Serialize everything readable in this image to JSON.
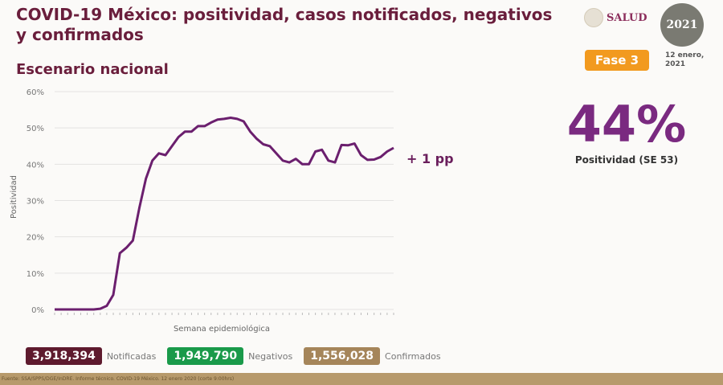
{
  "header": {
    "title": "COVID-19 México: positividad, casos notificados, negativos y confirmados",
    "subtitle": "Escenario nacional",
    "logo_text": "SALUD",
    "badge_year": "2021",
    "phase": "Fase 3",
    "date_line1": "12 enero,",
    "date_line2": "2021"
  },
  "highlight": {
    "value": "44%",
    "label": "Positividad (SE 53)",
    "change": "+ 1 pp"
  },
  "stats": [
    {
      "value": "3,918,394",
      "label": "Notificadas",
      "color": "#5e1a2e"
    },
    {
      "value": "1,949,790",
      "label": "Negativos",
      "color": "#1a9a4a"
    },
    {
      "value": "1,556,028",
      "label": "Confirmados",
      "color": "#a5855a"
    }
  ],
  "footer": "Fuente: SSA/SPPS/DGE/InDRE. Informe técnico. COVID-19 México. 12 enero 2020 (corte 9:00hrs)",
  "colors": {
    "line": "#6b1f6e",
    "title": "#6a1e3c",
    "highlight": "#7a2a80"
  },
  "chart_data": {
    "type": "line",
    "xlabel": "Semana epidemiológica",
    "ylabel": "Positividad",
    "ylim": [
      0,
      60
    ],
    "yticks": [
      "0%",
      "10%",
      "20%",
      "30%",
      "40%",
      "50%",
      "60%"
    ],
    "grid": true,
    "x": [
      1,
      2,
      3,
      4,
      5,
      6,
      7,
      8,
      9,
      10,
      11,
      12,
      13,
      14,
      15,
      16,
      17,
      18,
      19,
      20,
      21,
      22,
      23,
      24,
      25,
      26,
      27,
      28,
      29,
      30,
      31,
      32,
      33,
      34,
      35,
      36,
      37,
      38,
      39,
      40,
      41,
      42,
      43,
      44,
      45,
      46,
      47,
      48,
      49,
      50,
      51,
      52,
      53
    ],
    "values": [
      0,
      0,
      0,
      0,
      0,
      0,
      0,
      0.2,
      1,
      4,
      15.5,
      17,
      19,
      28,
      36,
      41,
      43,
      42.5,
      45,
      47.5,
      49,
      49,
      50.5,
      50.5,
      51.5,
      52.3,
      52.5,
      52.8,
      52.5,
      51.8,
      49,
      47,
      45.5,
      45,
      43,
      41,
      40.5,
      41.5,
      40,
      40,
      43.5,
      44,
      41,
      40.5,
      45.3,
      45.2,
      45.7,
      42.5,
      41.2,
      41.3,
      42,
      43.5,
      44.5
    ]
  }
}
